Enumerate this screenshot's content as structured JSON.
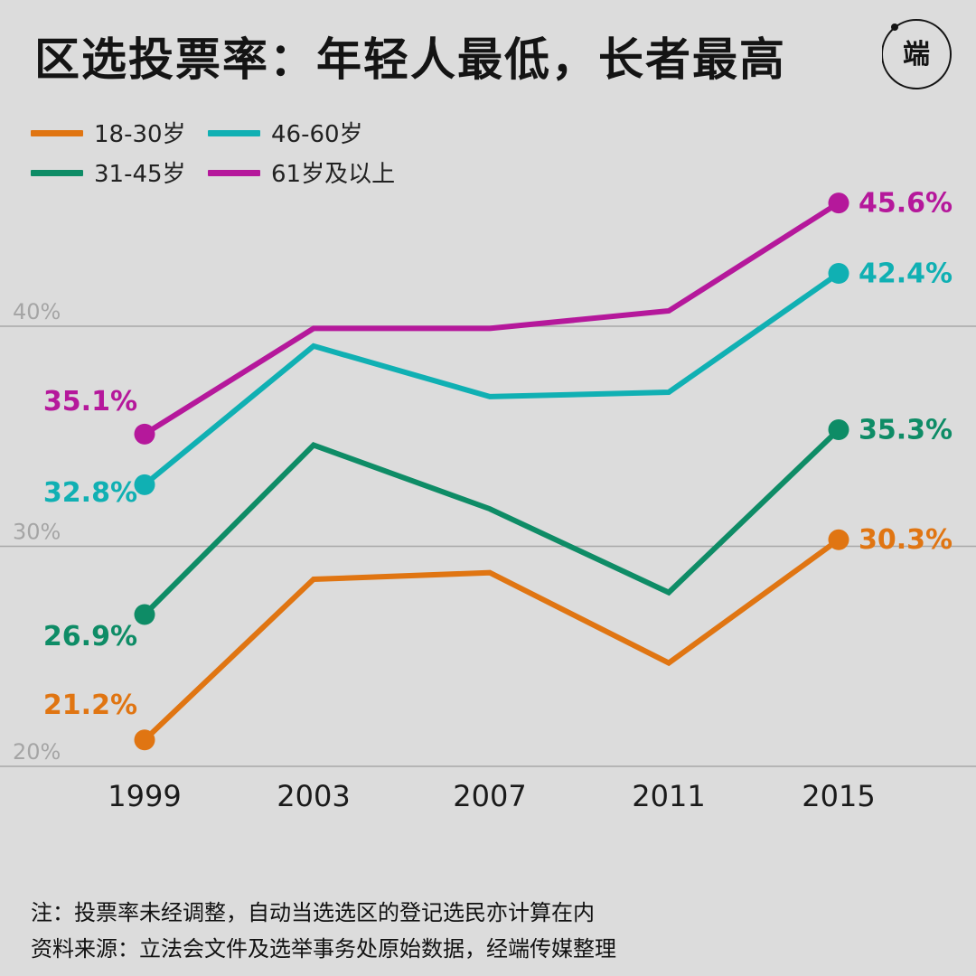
{
  "title": "区选投票率：年轻人最低，长者最高",
  "logo": {
    "icon": "initium-media-logo-icon",
    "glyph": "端"
  },
  "colors": {
    "background": "#dcdcdc",
    "grid": "#a8a8a8",
    "axis_label": "#a5a5a5"
  },
  "notes": {
    "note": "注：投票率未经调整，自动当选选区的登记选民亦计算在内",
    "source": "资料来源：立法会文件及选举事务处原始数据，经端传媒整理"
  },
  "chart_data": {
    "type": "line",
    "title": "区选投票率：年轻人最低，长者最高",
    "xlabel": "",
    "ylabel": "",
    "x": [
      "1999",
      "2003",
      "2007",
      "2011",
      "2015"
    ],
    "ylim": [
      20,
      50
    ],
    "yticks": [
      20,
      30,
      40
    ],
    "ytick_labels": [
      "20%",
      "30%",
      "40%"
    ],
    "grid": true,
    "legend_position": "top-left",
    "series": [
      {
        "name": "18-30岁",
        "color": "#e07512",
        "values": [
          21.2,
          28.5,
          28.8,
          24.7,
          30.3
        ],
        "start_label": "21.2%",
        "end_label": "30.3%"
      },
      {
        "name": "31-45岁",
        "color": "#0e8c66",
        "values": [
          26.9,
          34.6,
          31.7,
          27.9,
          35.3
        ],
        "start_label": "26.9%",
        "end_label": "35.3%"
      },
      {
        "name": "46-60岁",
        "color": "#10b0b3",
        "values": [
          32.8,
          39.1,
          36.8,
          37.0,
          42.4
        ],
        "start_label": "32.8%",
        "end_label": "42.4%"
      },
      {
        "name": "61岁及以上",
        "color": "#b5189b",
        "values": [
          35.1,
          39.9,
          39.9,
          40.7,
          45.6
        ],
        "start_label": "35.1%",
        "end_label": "45.6%"
      }
    ]
  }
}
